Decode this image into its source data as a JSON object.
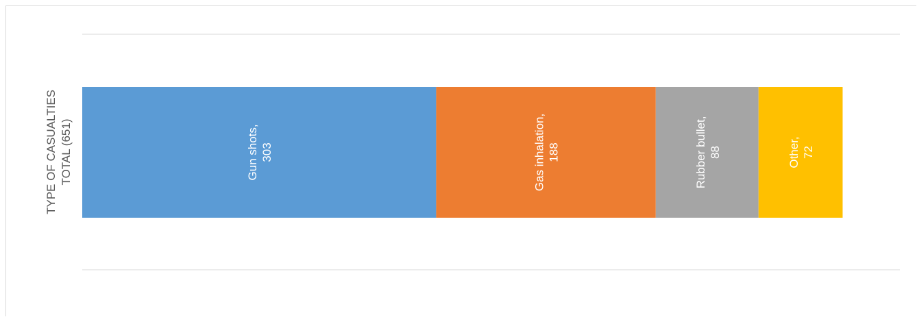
{
  "chart_data": {
    "type": "bar",
    "orientation": "horizontal",
    "stacked": true,
    "category_label": [
      "TYPE OF CASUALTIES",
      "TOTAL (651)"
    ],
    "series": [
      {
        "name": "Gun shots",
        "value": 303,
        "color": "#5b9bd5"
      },
      {
        "name": "Gas inhalation",
        "value": 188,
        "color": "#ed7d31"
      },
      {
        "name": "Rubber bullet",
        "value": 88,
        "color": "#a5a5a5"
      },
      {
        "name": "Other",
        "value": 72,
        "color": "#ffc000"
      }
    ],
    "xlim": [
      0,
      700
    ],
    "grid": true,
    "legend": "none"
  }
}
